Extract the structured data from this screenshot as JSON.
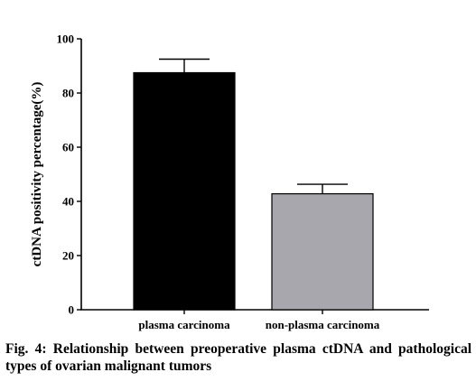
{
  "chart_data": {
    "type": "bar",
    "categories": [
      "plasma carcinoma",
      "non-plasma carcinoma"
    ],
    "values": [
      87.5,
      42.8
    ],
    "error": [
      5,
      3.5
    ],
    "colors": [
      "#000000",
      "#a7a7ad"
    ],
    "ylabel": "ctDNA positivity percentage(%)",
    "xlabel": "",
    "ylim": [
      0,
      100
    ],
    "yticks": [
      0,
      20,
      40,
      60,
      80,
      100
    ]
  },
  "caption": "Fig. 4: Relationship between preoperative plasma ctDNA and pathological types of ovarian malignant tumors"
}
